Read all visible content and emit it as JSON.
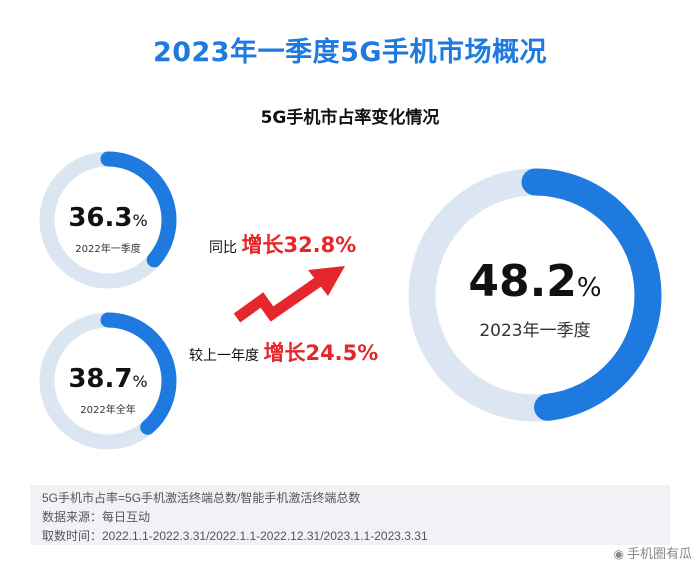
{
  "title": "2023年一季度5G手机市场概况",
  "subtitle": "5G手机市占率变化情况",
  "colors": {
    "accent": "#1f7ae0",
    "ring_track": "#dce6f3",
    "highlight": "#e5262a"
  },
  "chart_data": {
    "type": "donut",
    "unit": "%",
    "items": [
      {
        "label": "2022年一季度",
        "value": 36.3
      },
      {
        "label": "2022年全年",
        "value": 38.7
      },
      {
        "label": "2023年一季度",
        "value": 48.2
      }
    ],
    "comparisons": [
      {
        "label": "同比",
        "text": "增长",
        "value": "32.8%"
      },
      {
        "label": "较上一年度",
        "text": "增长",
        "value": "24.5%"
      }
    ]
  },
  "footer": {
    "definition": "5G手机市占率=5G手机激活终端总数/智能手机激活终端总数",
    "source": "数据来源：每日互动",
    "period": "取数时间：2022.1.1-2022.3.31/2022.1.1-2022.12.31/2023.1.1-2023.3.31"
  },
  "watermark": "手机圈有瓜",
  "watermark_icon": "weibo-icon"
}
